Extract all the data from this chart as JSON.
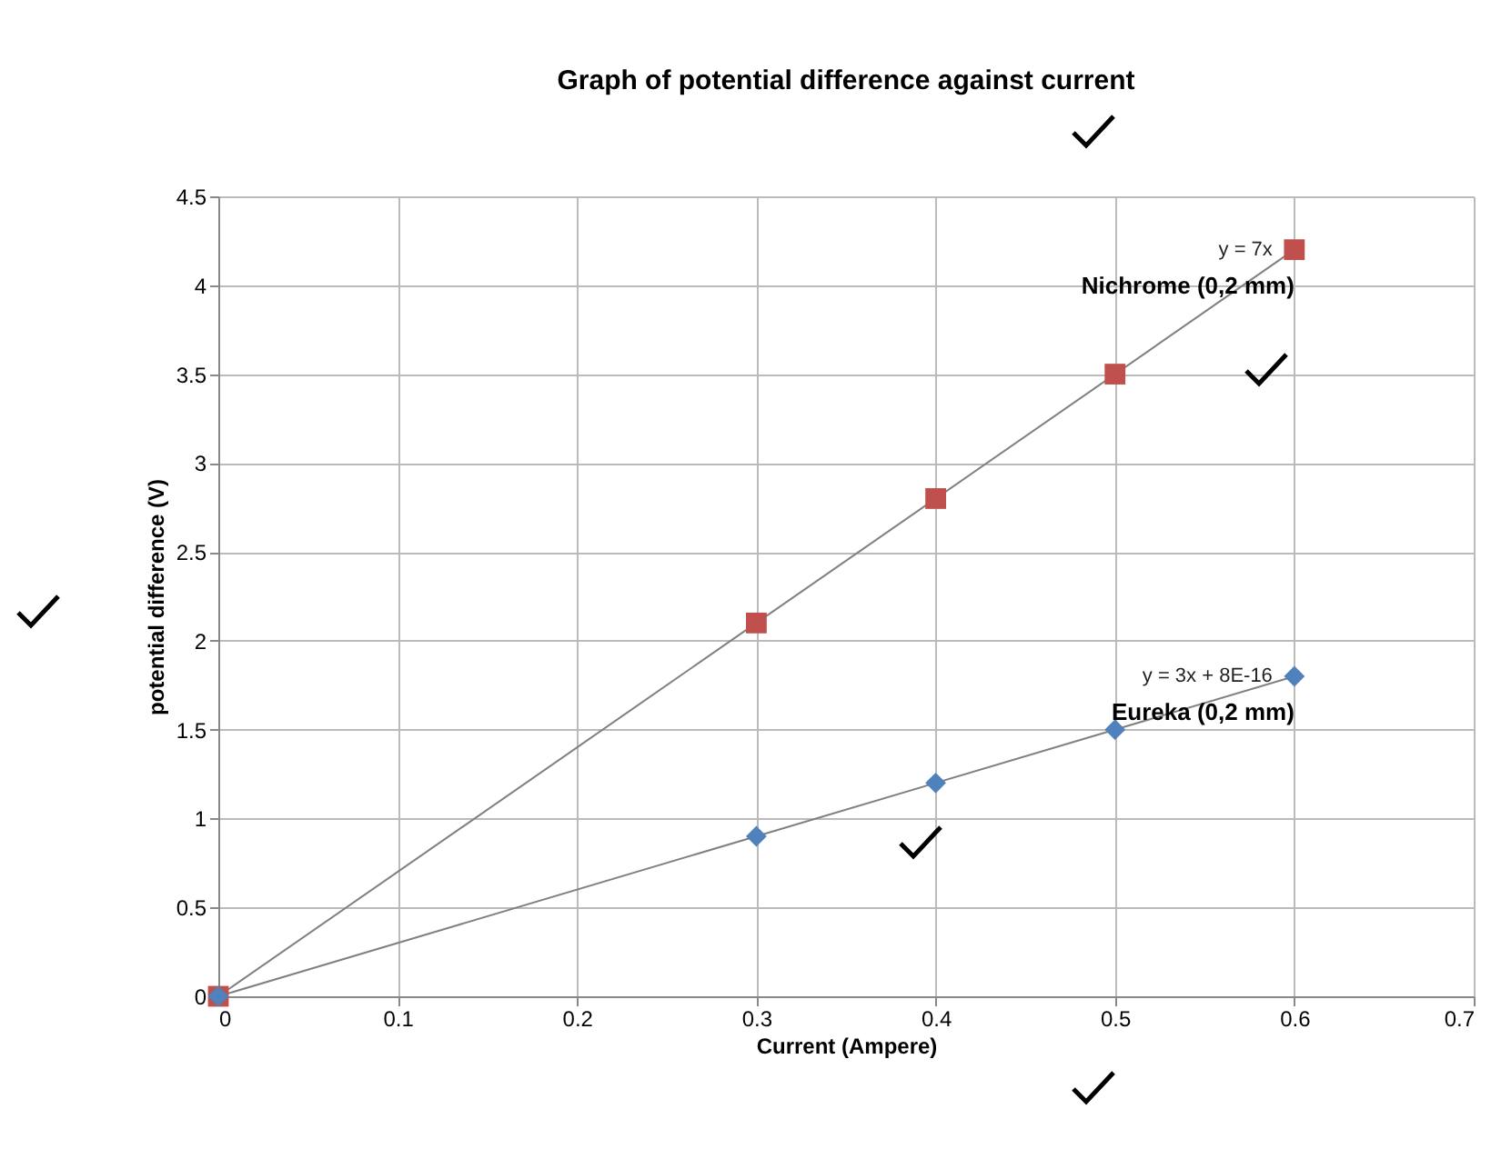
{
  "chart_data": {
    "type": "scatter",
    "title": "Graph of potential difference against current",
    "xlabel": "Current (Ampere)",
    "ylabel": "potential difference (V)",
    "series": [
      {
        "name": "Nichrome (0,2 mm)",
        "color": "#c0504d",
        "marker": "square",
        "x": [
          0,
          0.3,
          0.4,
          0.5,
          0.6
        ],
        "values": [
          0,
          2.1,
          2.8,
          3.5,
          4.2
        ]
      },
      {
        "name": "Eureka (0,2 mm)",
        "color": "#4f81bd",
        "marker": "diamond",
        "x": [
          0,
          0.3,
          0.4,
          0.5,
          0.6
        ],
        "values": [
          0,
          0.9,
          1.2,
          1.5,
          1.8
        ]
      },
      {
        "type": "line",
        "color": "#808080",
        "x": [
          0,
          0.6
        ],
        "values": [
          0,
          4.2
        ]
      },
      {
        "type": "line",
        "color": "#808080",
        "x": [
          0,
          0.6
        ],
        "values": [
          0,
          1.8
        ]
      }
    ],
    "annotations": [
      {
        "text": "y = 7x",
        "x": 0.6,
        "y": 4.2
      },
      {
        "text": "y = 3x + 8E-16",
        "x": 0.6,
        "y": 1.8
      }
    ],
    "xlim": [
      0,
      0.7
    ],
    "xticks": [
      0,
      0.1,
      0.2,
      0.3,
      0.4,
      0.5,
      0.6,
      0.7
    ],
    "ylim": [
      0,
      4.5
    ],
    "yticks": [
      0,
      0.5,
      1,
      1.5,
      2,
      2.5,
      3,
      3.5,
      4,
      4.5
    ],
    "grid": true
  }
}
